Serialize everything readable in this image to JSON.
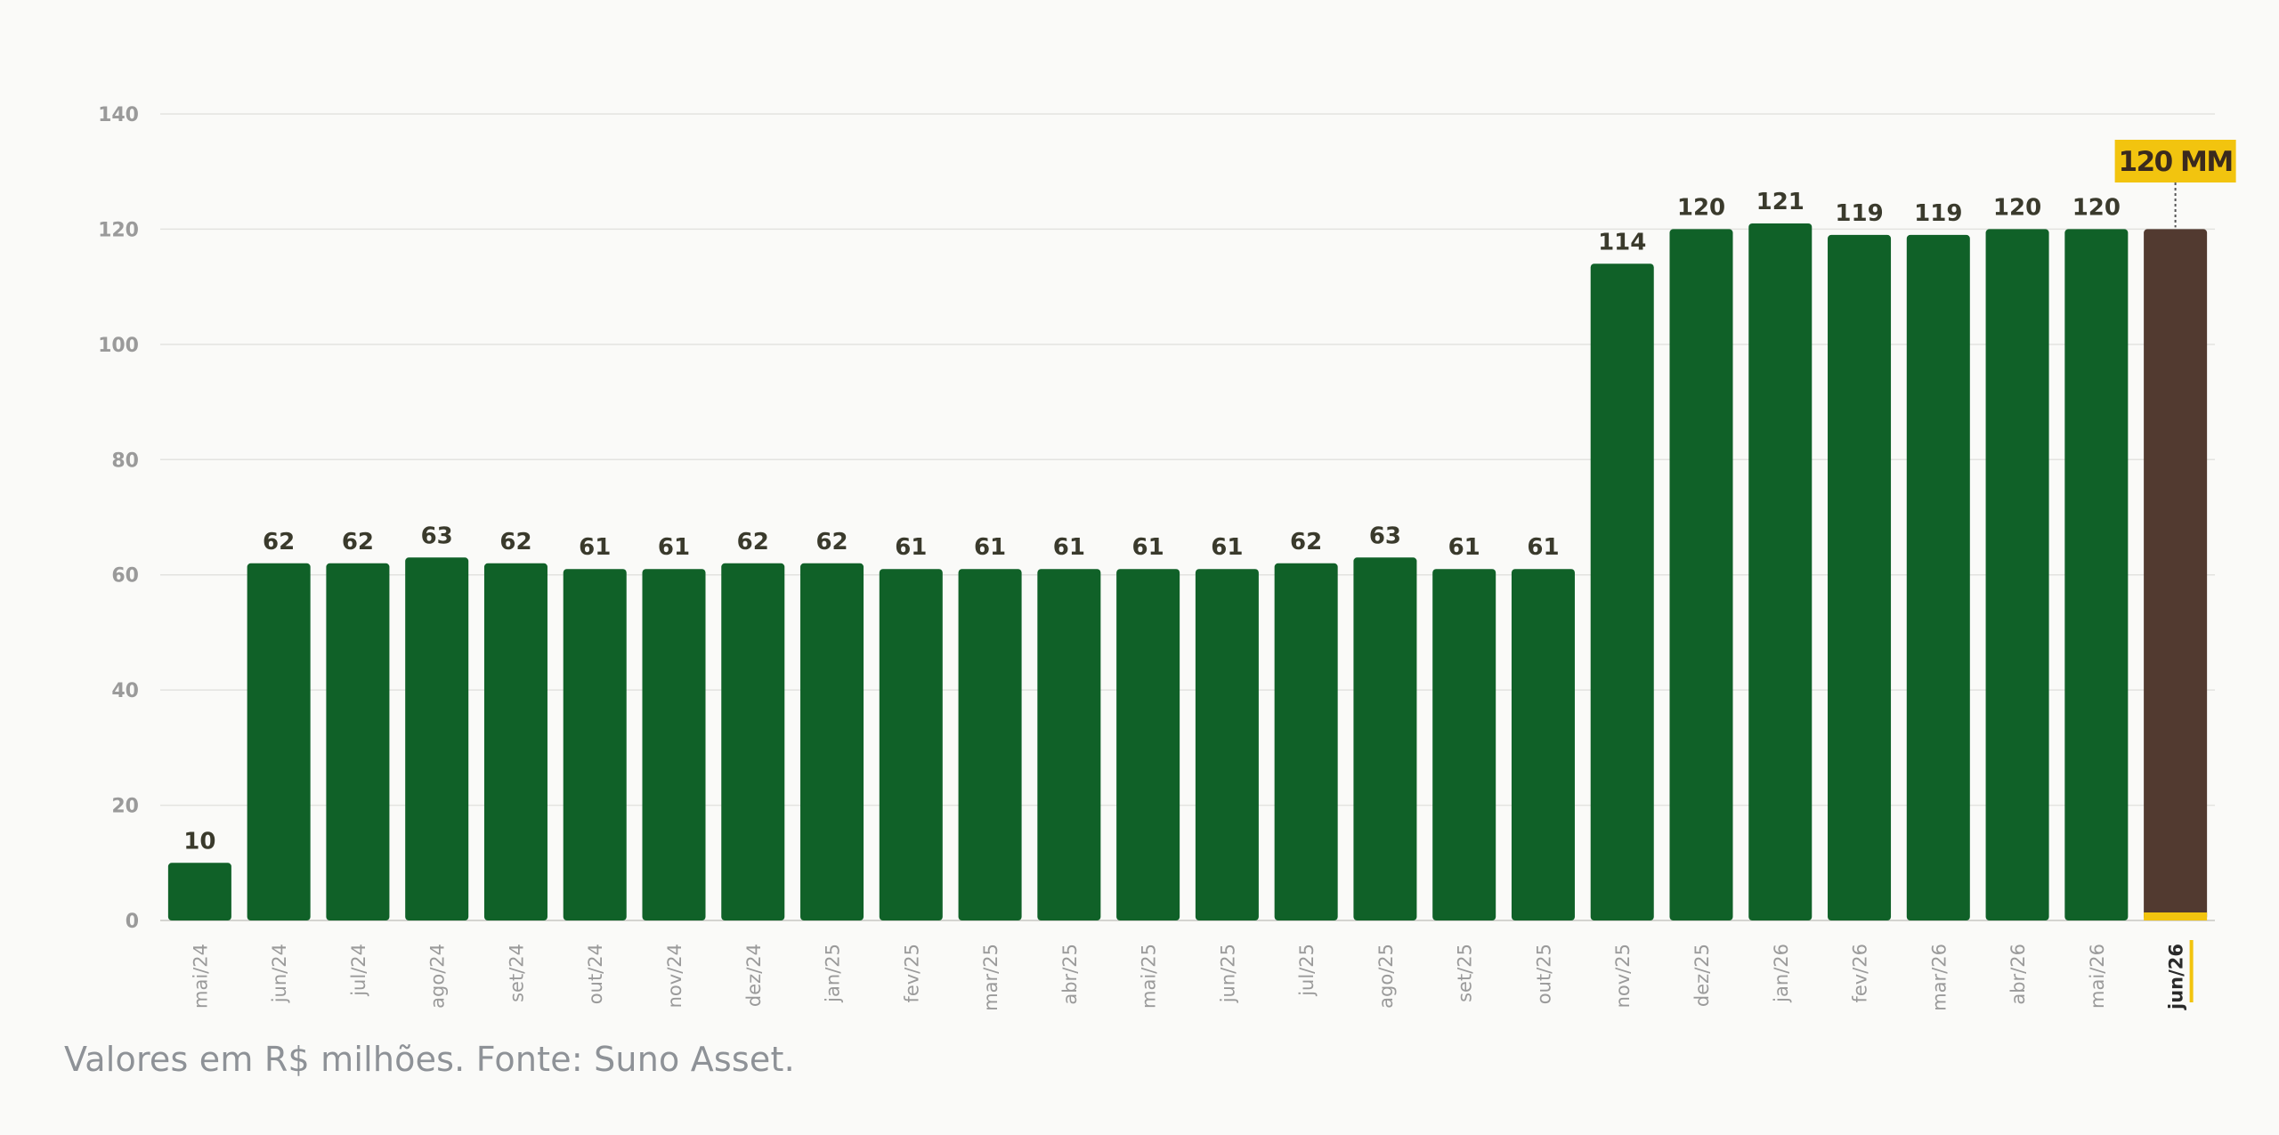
{
  "chart_data": {
    "type": "bar",
    "categories": [
      "mai/24",
      "jun/24",
      "jul/24",
      "ago/24",
      "set/24",
      "out/24",
      "nov/24",
      "dez/24",
      "jan/25",
      "fev/25",
      "mar/25",
      "abr/25",
      "mai/25",
      "jun/25",
      "jul/25",
      "ago/25",
      "set/25",
      "out/25",
      "nov/25",
      "dez/25",
      "jan/26",
      "fev/26",
      "mar/26",
      "abr/26",
      "mai/26",
      "jun/26"
    ],
    "values": [
      10,
      62,
      62,
      63,
      62,
      61,
      61,
      62,
      62,
      61,
      61,
      61,
      61,
      61,
      62,
      63,
      61,
      61,
      114,
      120,
      121,
      119,
      119,
      120,
      120,
      120
    ],
    "data_labels": [
      "10",
      "62",
      "62",
      "63",
      "62",
      "61",
      "61",
      "62",
      "62",
      "61",
      "61",
      "61",
      "61",
      "61",
      "62",
      "63",
      "61",
      "61",
      "114",
      "120",
      "121",
      "119",
      "119",
      "120",
      "120",
      ""
    ],
    "ylim": [
      0,
      140
    ],
    "yticks": [
      0,
      20,
      40,
      60,
      80,
      100,
      120,
      140
    ],
    "grid": true,
    "highlight_index": 25,
    "highlight_label": "120 MM",
    "colors": {
      "bar": "#106128",
      "highlight_bar": "#523A30",
      "highlight_base": "#F2C40F",
      "badge_bg": "#F2C40F",
      "badge_text": "#3A2A1E",
      "data_label": "#3A3A2C",
      "tick_label": "#9A9A9A",
      "gridline": "#E3E3E0",
      "axis": "#D4D4D0"
    }
  },
  "footnote": "Valores em R$ milhões. Fonte: Suno Asset."
}
